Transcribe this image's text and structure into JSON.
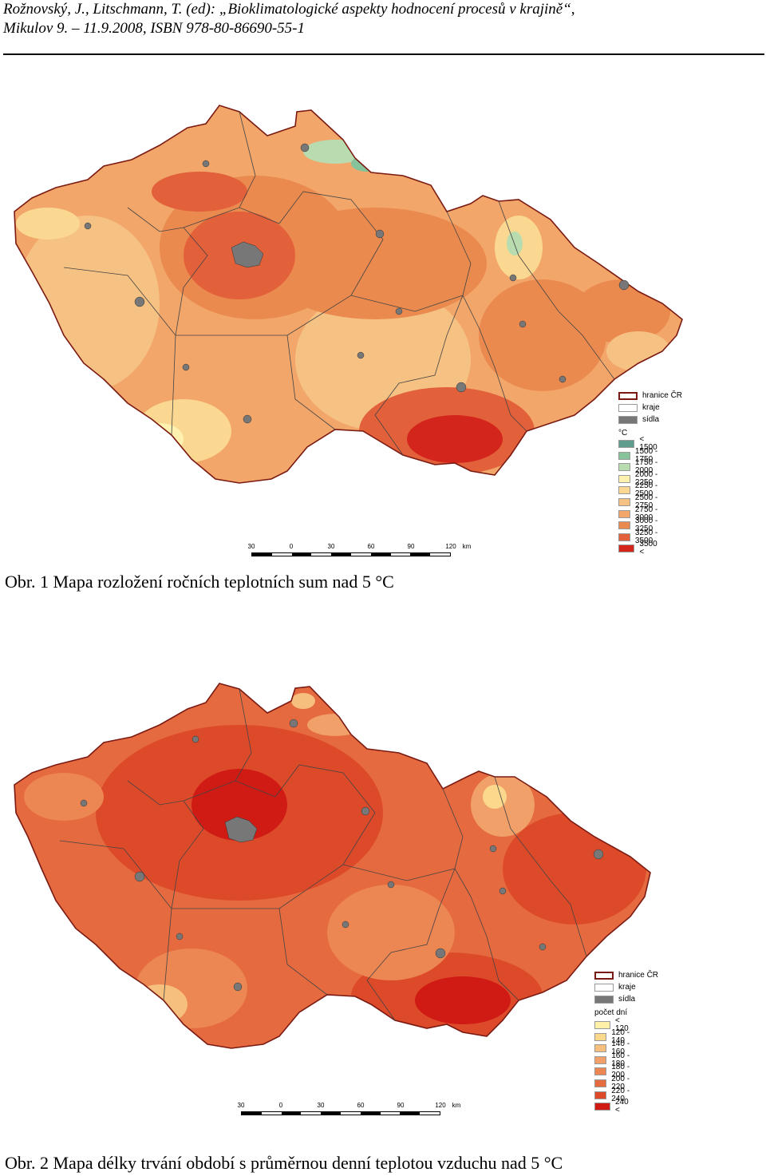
{
  "header": {
    "line1": "Rožnovský, J., Litschmann, T. (ed): „Bioklimatologické aspekty hodnocení procesů v krajině“,",
    "line2": "Mikulov 9. – 11.9.2008, ISBN 978-80-86690-55-1"
  },
  "figure1": {
    "caption": "Obr. 1 Mapa rozložení ročních teplotních sum nad 5 °C",
    "legend": {
      "border": "hranice ČR",
      "regions": "kraje",
      "settlements": "sídla",
      "unit": "°C",
      "classes": [
        {
          "label": "< 1500",
          "color": "#5f9e8e"
        },
        {
          "label": "1500 - 1750",
          "color": "#86c29a"
        },
        {
          "label": "1750 - 2000",
          "color": "#b8dcb0"
        },
        {
          "label": "2000 - 2250",
          "color": "#fff2b0"
        },
        {
          "label": "2250 - 2500",
          "color": "#fbd891"
        },
        {
          "label": "2500 - 2750",
          "color": "#f6c283"
        },
        {
          "label": "2750 - 3000",
          "color": "#f2a66a"
        },
        {
          "label": "3000 - 3250",
          "color": "#ea8a4f"
        },
        {
          "label": "3250 - 3500",
          "color": "#e2603a"
        },
        {
          "label": "3500 <",
          "color": "#d4251c"
        }
      ]
    },
    "scale": {
      "ticks": [
        "30",
        "0",
        "30",
        "60",
        "90",
        "120"
      ],
      "unit": "km"
    }
  },
  "figure2": {
    "caption": "Obr. 2 Mapa délky trvání období s průměrnou denní teplotou vzduchu nad 5 °C",
    "legend": {
      "border": "hranice ČR",
      "regions": "kraje",
      "settlements": "sídla",
      "unit": "počet dní",
      "classes": [
        {
          "label": "< 120",
          "color": "#fff2a8"
        },
        {
          "label": "120 - 140",
          "color": "#fbd88b"
        },
        {
          "label": "140 - 160",
          "color": "#f6bf7e"
        },
        {
          "label": "160 - 180",
          "color": "#f1a06a"
        },
        {
          "label": "180 - 200",
          "color": "#ec8652"
        },
        {
          "label": "200 - 220",
          "color": "#e56a3f"
        },
        {
          "label": "220 - 240",
          "color": "#dd4a2a"
        },
        {
          "label": "240 <",
          "color": "#d01a14"
        }
      ]
    },
    "scale": {
      "ticks": [
        "30",
        "0",
        "30",
        "60",
        "90",
        "120"
      ],
      "unit": "km"
    }
  },
  "colors": {
    "border": "#7a1a12",
    "settlement": "#777777",
    "region_line": "#444444"
  }
}
